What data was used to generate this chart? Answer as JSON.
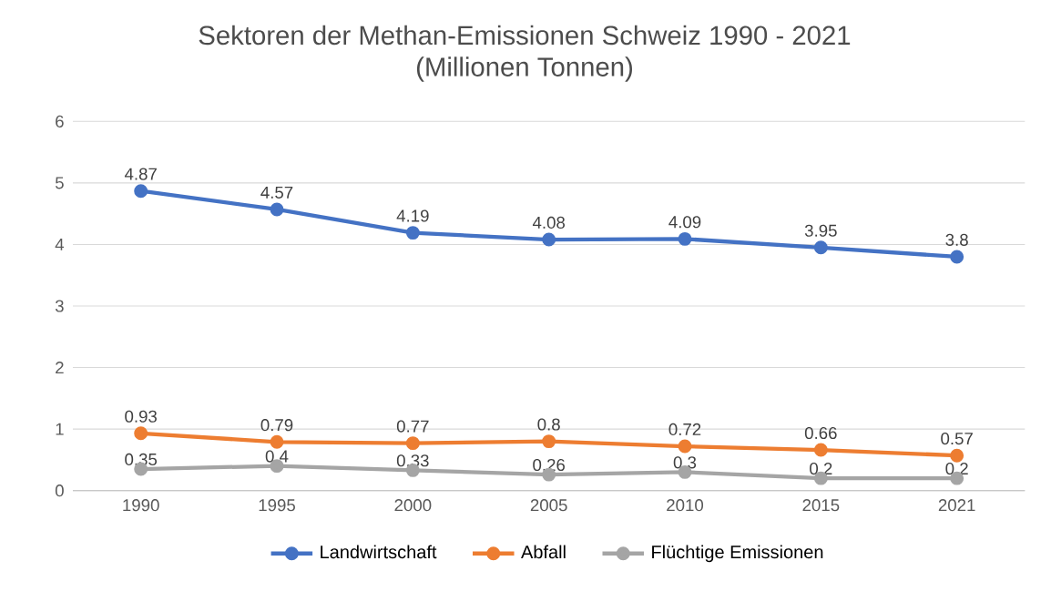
{
  "chart_data": {
    "type": "line",
    "title": "Sektoren der Methan-Emissionen Schweiz 1990 - 2021",
    "subtitle": "(Millionen Tonnen)",
    "categories": [
      "1990",
      "1995",
      "2000",
      "2005",
      "2010",
      "2015",
      "2021"
    ],
    "series": [
      {
        "name": "Landwirtschaft",
        "color": "#4472c4",
        "values": [
          4.87,
          4.57,
          4.19,
          4.08,
          4.09,
          3.95,
          3.8
        ]
      },
      {
        "name": "Abfall",
        "color": "#ed7d31",
        "values": [
          0.93,
          0.79,
          0.77,
          0.8,
          0.72,
          0.66,
          0.57
        ]
      },
      {
        "name": "Flüchtige Emissionen",
        "color": "#a5a5a5",
        "values": [
          0.35,
          0.4,
          0.33,
          0.26,
          0.3,
          0.2,
          0.2
        ]
      }
    ],
    "ylim": [
      0,
      6
    ],
    "yticks": [
      0,
      1,
      2,
      3,
      4,
      5,
      6
    ],
    "grid": "y",
    "legend": "bottom",
    "marker": "circle",
    "line_style": "solid",
    "data_labels": true
  }
}
